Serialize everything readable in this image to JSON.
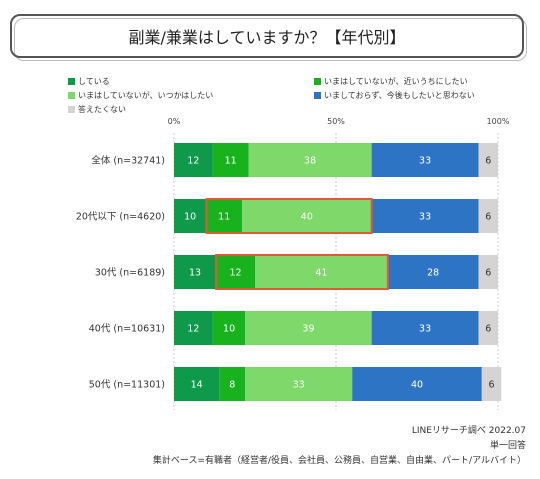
{
  "chart_data": {
    "type": "bar",
    "orientation": "horizontal",
    "stacked": true,
    "title": "副業/兼業はしていますか？【年代別】",
    "categories": [
      "全体 (n=32741)",
      "20代以下 (n=4620)",
      "30代 (n=6189)",
      "40代 (n=10631)",
      "50代 (n=11301)"
    ],
    "series": [
      {
        "name": "している",
        "color": "#0e9a4a",
        "values": [
          12,
          10,
          13,
          12,
          14
        ]
      },
      {
        "name": "いまはしていないが、近いうちにしたい",
        "color": "#17b21e",
        "values": [
          11,
          11,
          12,
          10,
          8
        ]
      },
      {
        "name": "いまはしていないが、いつかはしたい",
        "color": "#7fd86a",
        "values": [
          38,
          40,
          41,
          39,
          33
        ]
      },
      {
        "name": "いましておらず、今後もしたいと思わない",
        "color": "#2e74c4",
        "values": [
          33,
          33,
          28,
          33,
          40
        ]
      },
      {
        "name": "答えたくない",
        "color": "#d4d4d4",
        "values": [
          6,
          6,
          6,
          6,
          6
        ]
      }
    ],
    "xlim": [
      0,
      100
    ],
    "x_ticks": [
      "0%",
      "50%",
      "100%"
    ],
    "highlights": [
      {
        "category": "20代以下 (n=4620)",
        "series": [
          "いまはしていないが、近いうちにしたい",
          "いまはしていないが、いつかはしたい"
        ],
        "color": "#e05a3a"
      },
      {
        "category": "30代 (n=6189)",
        "series": [
          "いまはしていないが、近いうちにしたい",
          "いまはしていないが、いつかはしたい"
        ],
        "color": "#e05a3a"
      }
    ]
  },
  "footer": {
    "source": "LINEリサーチ調べ 2022.07",
    "answer_type": "単一回答",
    "base": "集計ベース=有職者（経営者/役員、会社員、公務員、自営業、自由業、パート/アルバイト）"
  }
}
